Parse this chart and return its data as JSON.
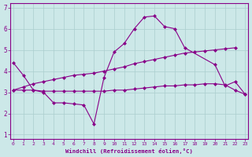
{
  "xlabel": "Windchill (Refroidissement éolien,°C)",
  "bg_color": "#cce8e8",
  "grid_color": "#aacece",
  "line_color": "#880088",
  "xlim": [
    -0.3,
    23.3
  ],
  "ylim": [
    0.8,
    7.2
  ],
  "yticks": [
    1,
    2,
    3,
    4,
    5,
    6,
    7
  ],
  "curve1_x": [
    0,
    1,
    2,
    3,
    4,
    5,
    6,
    7,
    8,
    9,
    10,
    11,
    12,
    13,
    14,
    15,
    16,
    17,
    20,
    21,
    22,
    23
  ],
  "curve1_y": [
    4.4,
    3.8,
    3.1,
    3.0,
    2.5,
    2.5,
    2.45,
    2.4,
    1.5,
    3.7,
    4.9,
    5.3,
    6.0,
    6.55,
    6.6,
    6.1,
    6.0,
    5.1,
    4.3,
    3.3,
    3.5,
    2.9
  ],
  "curve2_x": [
    0,
    1,
    2,
    3,
    4,
    5,
    6,
    7,
    8,
    9,
    10,
    11,
    12,
    13,
    14,
    15,
    16,
    17,
    18,
    19,
    20,
    21,
    22,
    23
  ],
  "curve2_y": [
    3.1,
    3.1,
    3.1,
    3.05,
    3.05,
    3.05,
    3.05,
    3.05,
    3.05,
    3.05,
    3.1,
    3.1,
    3.15,
    3.2,
    3.25,
    3.3,
    3.3,
    3.35,
    3.35,
    3.4,
    3.4,
    3.35,
    3.1,
    2.9
  ],
  "curve3_x": [
    0,
    1,
    2,
    3,
    4,
    5,
    6,
    7,
    8,
    9,
    10,
    11,
    12,
    13,
    14,
    15,
    16,
    17,
    18,
    19,
    20,
    21,
    22
  ],
  "curve3_y": [
    3.1,
    3.25,
    3.4,
    3.5,
    3.6,
    3.7,
    3.8,
    3.85,
    3.9,
    4.0,
    4.1,
    4.2,
    4.35,
    4.45,
    4.55,
    4.65,
    4.75,
    4.85,
    4.9,
    4.95,
    5.0,
    5.05,
    5.1
  ],
  "lw": 0.8,
  "ms": 2.5
}
